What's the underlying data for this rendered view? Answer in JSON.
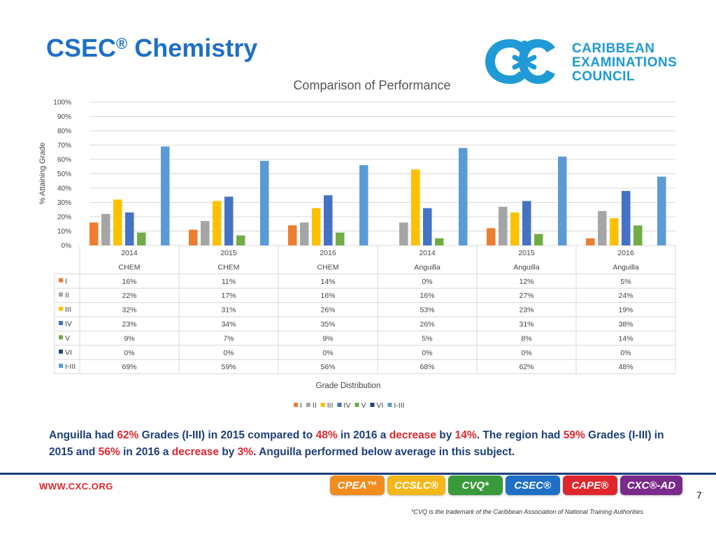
{
  "slide": {
    "title": "CSEC",
    "title_suffix": "Chemistry",
    "title_mark": "®",
    "org_line1": "CARIBBEAN",
    "org_line2": "EXAMINATIONS",
    "org_line3": "COUNCIL",
    "website": "WWW.CXC.ORG",
    "page_number": "7",
    "trademark": "*CVQ is the trademark of the Caribbean Association of National Training Authorities"
  },
  "summary": {
    "p1": "Anguilla had ",
    "v1": "62%",
    "p2": " Grades (I-III) in 2015 compared to ",
    "v2": "48%",
    "p3": " in 2016 a ",
    "v3": "decrease",
    "p4": " by ",
    "v4": "14%",
    "p5": ". The region had ",
    "v5": "59%",
    "p6": " Grades (I-III) in 2015 and ",
    "v6": "56%",
    "p7": " in 2016 a ",
    "v7": "decrease",
    "p8": " by ",
    "v8": "3%",
    "p9": ". Anguilla performed below average in this subject."
  },
  "badges": [
    {
      "label": "CPEA™",
      "color": "#f28c1c"
    },
    {
      "label": "CCSLC®",
      "color": "#f5b81c"
    },
    {
      "label": "CVQ*",
      "color": "#3a9a3a"
    },
    {
      "label": "CSEC®",
      "color": "#1f6fc5"
    },
    {
      "label": "CAPE®",
      "color": "#e0262d"
    },
    {
      "label": "CXC®-AD",
      "color": "#7a2a8a"
    }
  ],
  "chart_data": {
    "type": "bar",
    "title": "Comparison of Performance",
    "xlabel": "Grade Distribution",
    "ylabel": "% Attaining Grade",
    "ylim": [
      0,
      100
    ],
    "yticks": [
      "0%",
      "10%",
      "20%",
      "30%",
      "40%",
      "50%",
      "60%",
      "70%",
      "80%",
      "90%",
      "100%"
    ],
    "categories": [
      {
        "year": "2014",
        "group": "CHEM"
      },
      {
        "year": "2015",
        "group": "CHEM"
      },
      {
        "year": "2016",
        "group": "CHEM"
      },
      {
        "year": "2014",
        "group": "Anguilla"
      },
      {
        "year": "2015",
        "group": "Anguilla"
      },
      {
        "year": "2016",
        "group": "Anguilla"
      }
    ],
    "series": [
      {
        "name": "I",
        "color": "#ed7d31",
        "values": [
          16,
          11,
          14,
          0,
          12,
          5
        ],
        "labels": [
          "16%",
          "11%",
          "14%",
          "0%",
          "12%",
          "5%"
        ]
      },
      {
        "name": "II",
        "color": "#a5a5a5",
        "values": [
          22,
          17,
          16,
          16,
          27,
          24
        ],
        "labels": [
          "22%",
          "17%",
          "16%",
          "16%",
          "27%",
          "24%"
        ]
      },
      {
        "name": "III",
        "color": "#ffc000",
        "values": [
          32,
          31,
          26,
          53,
          23,
          19
        ],
        "labels": [
          "32%",
          "31%",
          "26%",
          "53%",
          "23%",
          "19%"
        ]
      },
      {
        "name": "IV",
        "color": "#4472c4",
        "values": [
          23,
          34,
          35,
          26,
          31,
          38
        ],
        "labels": [
          "23%",
          "34%",
          "35%",
          "26%",
          "31%",
          "38%"
        ]
      },
      {
        "name": "V",
        "color": "#70ad47",
        "values": [
          9,
          7,
          9,
          5,
          8,
          14
        ],
        "labels": [
          "9%",
          "7%",
          "9%",
          "5%",
          "8%",
          "14%"
        ]
      },
      {
        "name": "VI",
        "color": "#264478",
        "values": [
          0,
          0,
          0,
          0,
          0,
          0
        ],
        "labels": [
          "0%",
          "0%",
          "0%",
          "0%",
          "0%",
          "0%"
        ]
      },
      {
        "name": "I-III",
        "color": "#5b9bd5",
        "values": [
          69,
          59,
          56,
          68,
          62,
          48
        ],
        "labels": [
          "69%",
          "59%",
          "56%",
          "68%",
          "62%",
          "48%"
        ]
      }
    ],
    "legend_position": "bottom",
    "grid": true
  }
}
